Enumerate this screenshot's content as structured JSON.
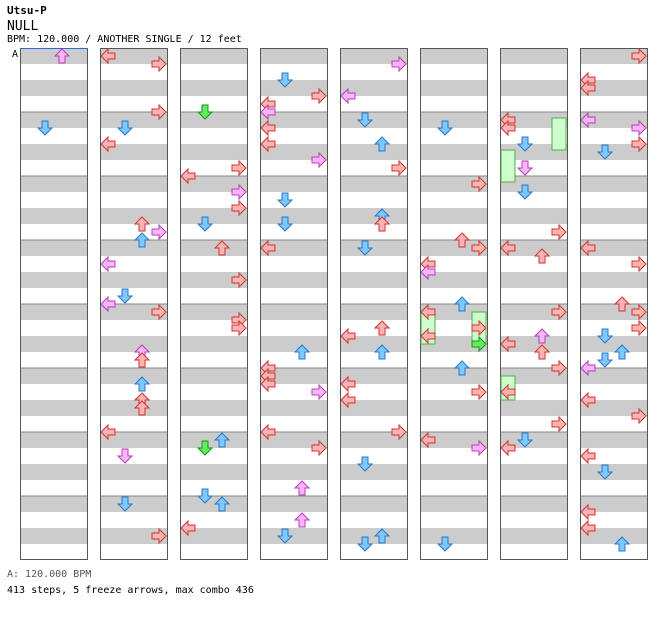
{
  "header": {
    "artist": "Utsu-P",
    "title": "NULL",
    "info": "BPM: 120.000 / ANOTHER SINGLE / 12 feet"
  },
  "chart": {
    "bpm_marker": "A",
    "columns": 8,
    "measures_per_column": 8,
    "colors": {
      "left": "#ffb4b4",
      "left_stroke": "#cc3333",
      "down": "#7ec8ff",
      "down_stroke": "#2a78c8",
      "up": "#ffb4b4",
      "up_stroke": "#cc3333",
      "right": "#ffb4b4",
      "right_stroke": "#cc3333",
      "pink": "#ffb4ff",
      "pink_stroke": "#b040b0",
      "green": "#60ee60",
      "green_stroke": "#129612",
      "freeze": "#ccffcc",
      "freeze_stroke": "#55aa55",
      "stripe": "#cccccc"
    }
  },
  "footer": {
    "bpm": "A: 120.000 BPM",
    "stats": "413 steps, 5 freeze arrows, max combo 436"
  }
}
